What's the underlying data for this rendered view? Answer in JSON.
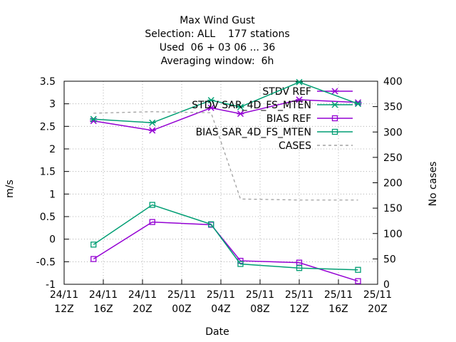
{
  "chart_data": {
    "type": "line",
    "title": [
      "Max Wind Gust",
      "Selection: ALL    177 stations",
      "Used  06 + 03 06 ... 36",
      "Averaging window:  6h"
    ],
    "x_label": "Date",
    "y_label": "m/s",
    "y2_label": "No cases",
    "x": [
      "24/11 15Z",
      "24/11 21Z",
      "25/11 03Z",
      "25/11 06Z",
      "25/11 12Z",
      "25/11 18Z"
    ],
    "xlim": [
      "24/11 12Z",
      "25/11 20Z"
    ],
    "xticks": [
      "24/11 12Z",
      "24/11 16Z",
      "24/11 20Z",
      "25/11 00Z",
      "25/11 04Z",
      "25/11 08Z",
      "25/11 12Z",
      "25/11 16Z",
      "25/11 20Z"
    ],
    "ylim": [
      -1,
      3.5
    ],
    "yticks": [
      -1,
      -0.5,
      0,
      0.5,
      1,
      1.5,
      2,
      2.5,
      3,
      3.5
    ],
    "y2lim": [
      0,
      400
    ],
    "y2ticks": [
      0,
      50,
      100,
      150,
      200,
      250,
      300,
      350,
      400
    ],
    "grid": true,
    "legend": "top-right",
    "series": [
      {
        "name": "STDV REF",
        "color": "#9400d3",
        "marker": "cross",
        "values": [
          2.62,
          2.41,
          2.91,
          2.78,
          3.09,
          3.03
        ]
      },
      {
        "name": "STDV SAR_4D_FS_MTEN",
        "color": "#009e73",
        "marker": "cross",
        "values": [
          2.66,
          2.58,
          3.08,
          2.93,
          3.48,
          3.0
        ]
      },
      {
        "name": "BIAS REF",
        "color": "#9400d3",
        "marker": "square",
        "values": [
          -0.44,
          0.38,
          0.32,
          -0.48,
          -0.52,
          -0.93
        ]
      },
      {
        "name": "BIAS SAR_4D_FS_MTEN",
        "color": "#009e73",
        "marker": "square",
        "values": [
          -0.12,
          0.76,
          0.33,
          -0.55,
          -0.64,
          -0.68
        ]
      },
      {
        "name": "CASES",
        "color": "#a0a0a0",
        "dash": true,
        "axis": "y2",
        "values": [
          337,
          340,
          338,
          168,
          166,
          166
        ]
      }
    ]
  }
}
